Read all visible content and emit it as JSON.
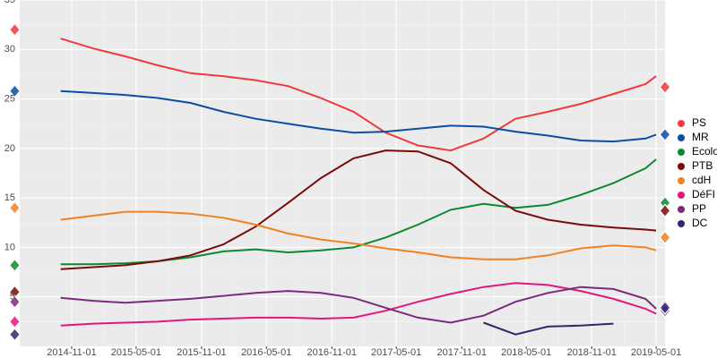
{
  "chart_data": {
    "type": "line",
    "x": [
      "2014-10-01",
      "2015-01-01",
      "2015-04-01",
      "2015-07-01",
      "2015-10-01",
      "2016-01-01",
      "2016-04-01",
      "2016-07-01",
      "2016-10-01",
      "2017-01-01",
      "2017-04-01",
      "2017-07-01",
      "2017-10-01",
      "2018-01-01",
      "2018-04-01",
      "2018-07-01",
      "2018-10-01",
      "2019-01-01",
      "2019-04-01",
      "2019-05-01"
    ],
    "election_dates": [
      "2014-05-25",
      "2019-05-26"
    ],
    "xlim": [
      "2014-06-08",
      "2019-05-26"
    ],
    "xticks": [
      "2014-11-01",
      "2015-05-01",
      "2015-11-01",
      "2016-05-01",
      "2016-11-01",
      "2017-05-01",
      "2017-11-01",
      "2018-05-01",
      "2018-11-01",
      "2019-05-01"
    ],
    "ylim": [
      0,
      35
    ],
    "yticks": [
      5,
      10,
      15,
      20,
      25,
      30,
      35
    ],
    "grid": true,
    "legend": "right",
    "series": [
      {
        "name": "PS",
        "color": "#f0393f",
        "values": [
          31.1,
          30.1,
          29.3,
          28.4,
          27.6,
          27.3,
          26.9,
          26.3,
          25.1,
          23.7,
          21.6,
          20.3,
          19.8,
          21.0,
          23.0,
          23.7,
          24.5,
          25.5,
          26.5,
          27.3
        ],
        "election_2014": 32.0,
        "election_2019": 26.2
      },
      {
        "name": "MR",
        "color": "#0b4ea2",
        "values": [
          25.8,
          25.6,
          25.4,
          25.1,
          24.6,
          23.7,
          23.0,
          22.5,
          22.0,
          21.6,
          21.7,
          22.0,
          22.3,
          22.2,
          21.7,
          21.3,
          20.8,
          20.7,
          21.0,
          21.4
        ],
        "election_2014": 25.8,
        "election_2019": 21.4
      },
      {
        "name": "Ecolo",
        "color": "#0a8a2e",
        "values": [
          8.3,
          8.3,
          8.4,
          8.6,
          9.0,
          9.6,
          9.8,
          9.5,
          9.7,
          10.0,
          11.0,
          12.3,
          13.8,
          14.4,
          14.0,
          14.3,
          15.3,
          16.5,
          18.0,
          18.9
        ],
        "election_2014": 8.2,
        "election_2019": 14.5
      },
      {
        "name": "PTB",
        "color": "#7b0b0b",
        "values": [
          7.8,
          8.0,
          8.2,
          8.6,
          9.2,
          10.3,
          12.1,
          14.5,
          17.0,
          19.0,
          19.8,
          19.7,
          18.5,
          15.8,
          13.7,
          12.8,
          12.3,
          12.0,
          11.8,
          11.7
        ],
        "election_2014": 5.5,
        "election_2019": 13.7
      },
      {
        "name": "cdH",
        "color": "#f08225",
        "values": [
          12.8,
          13.2,
          13.6,
          13.6,
          13.4,
          13.0,
          12.3,
          11.4,
          10.8,
          10.4,
          9.9,
          9.5,
          9.0,
          8.8,
          8.8,
          9.2,
          9.9,
          10.2,
          10.0,
          9.7
        ],
        "election_2014": 14.0,
        "election_2019": 11.0
      },
      {
        "name": "DéFI",
        "color": "#e2187c",
        "values": [
          2.1,
          2.3,
          2.4,
          2.5,
          2.7,
          2.8,
          2.9,
          2.9,
          2.8,
          2.9,
          3.6,
          4.5,
          5.3,
          6.0,
          6.4,
          6.2,
          5.6,
          4.8,
          3.8,
          3.3
        ],
        "election_2014": 2.5,
        "election_2019": 4.1
      },
      {
        "name": "PP",
        "color": "#7a2b7e",
        "values": [
          4.9,
          4.6,
          4.4,
          4.6,
          4.8,
          5.1,
          5.4,
          5.6,
          5.4,
          4.9,
          3.9,
          2.9,
          2.4,
          3.1,
          4.5,
          5.4,
          6.0,
          5.8,
          4.8,
          3.8
        ],
        "election_2014": 4.5,
        "election_2019": 3.6
      },
      {
        "name": "DC",
        "color": "#2b2b6b",
        "values": [
          null,
          null,
          null,
          null,
          null,
          null,
          null,
          null,
          null,
          null,
          null,
          null,
          null,
          2.4,
          1.2,
          2.0,
          2.1,
          2.3,
          null,
          null
        ],
        "election_2014": 1.2,
        "election_2019": 3.9
      }
    ]
  }
}
